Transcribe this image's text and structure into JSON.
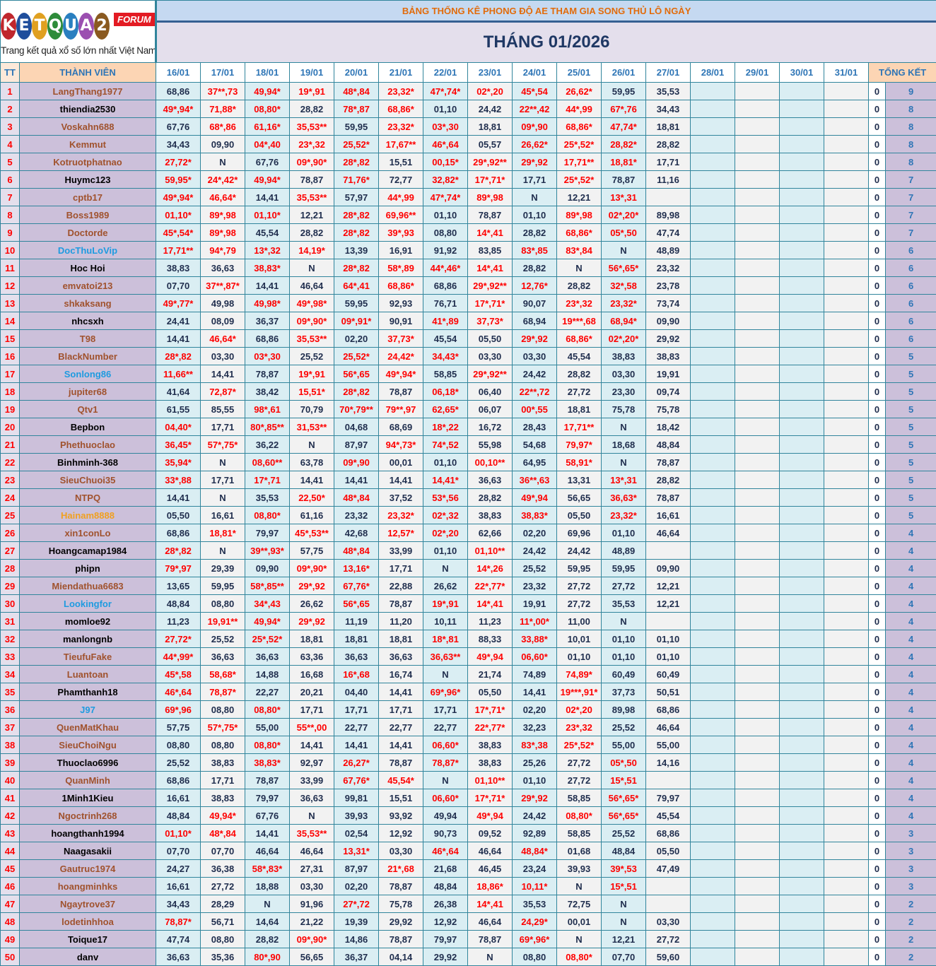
{
  "logo": {
    "letters": [
      "K",
      "E",
      "T",
      "Q",
      "U",
      "A",
      "2"
    ],
    "letter_colors": [
      "#c0272d",
      "#1f4e9c",
      "#e0a020",
      "#2e8b3a",
      "#2a7fc0",
      "#9b4fb0",
      "#8a5a20"
    ],
    "badge": "FORUM",
    "tagline": "Trang kết quả xổ số lớn nhất Việt Nam"
  },
  "title": "BẢNG THỐNG KÊ PHONG ĐỘ AE THAM GIA SONG THỦ LÔ NGÀY",
  "month": "THÁNG 01/2026",
  "headers": {
    "tt": "TT",
    "member": "THÀNH VIÊN",
    "total": "TỔNG KẾT",
    "dates": [
      "16/01",
      "17/01",
      "18/01",
      "19/01",
      "20/01",
      "21/01",
      "22/01",
      "23/01",
      "24/01",
      "25/01",
      "26/01",
      "27/01",
      "28/01",
      "29/01",
      "30/01",
      "31/01"
    ]
  },
  "name_colors": {
    "brown": "#a0522d",
    "black": "#000000",
    "blue": "#1e9be0",
    "orange": "#f0a020"
  },
  "highlight_color": "#ff0000",
  "rows": [
    [
      "1",
      "LangThang1977",
      "brown",
      [
        "68,86",
        "37**,73",
        "49,94*",
        "19*,91",
        "48*,84",
        "23,32*",
        "47*,74*",
        "02*,20",
        "45*,54",
        "26,62*",
        "59,95",
        "35,53"
      ],
      "0",
      "9"
    ],
    [
      "2",
      "thiendia2530",
      "black",
      [
        "49*,94*",
        "71,88*",
        "08,80*",
        "28,82",
        "78*,87",
        "68,86*",
        "01,10",
        "24,42",
        "22**,42",
        "44*,99",
        "67*,76",
        "34,43"
      ],
      "0",
      "8"
    ],
    [
      "3",
      "Voskahn688",
      "brown",
      [
        "67,76",
        "68*,86",
        "61,16*",
        "35,53**",
        "59,95",
        "23,32*",
        "03*,30",
        "18,81",
        "09*,90",
        "68,86*",
        "47,74*",
        "18,81"
      ],
      "0",
      "8"
    ],
    [
      "4",
      "Kemmut",
      "brown",
      [
        "34,43",
        "09,90",
        "04*,40",
        "23*,32",
        "25,52*",
        "17,67**",
        "46*,64",
        "05,57",
        "26,62*",
        "25*,52*",
        "28,82*",
        "28,82"
      ],
      "0",
      "8"
    ],
    [
      "5",
      "Kotruotphatnao",
      "brown",
      [
        "27,72*",
        "N",
        "67,76",
        "09*,90*",
        "28*,82",
        "15,51",
        "00,15*",
        "29*,92**",
        "29*,92",
        "17,71**",
        "18,81*",
        "17,71"
      ],
      "0",
      "8"
    ],
    [
      "6",
      "Huymc123",
      "black",
      [
        "59,95*",
        "24*,42*",
        "49,94*",
        "78,87",
        "71,76*",
        "72,77",
        "32,82*",
        "17*,71*",
        "17,71",
        "25*,52*",
        "78,87",
        "11,16"
      ],
      "0",
      "7"
    ],
    [
      "7",
      "cptb17",
      "brown",
      [
        "49*,94*",
        "46,64*",
        "14,41",
        "35,53**",
        "57,97",
        "44*,99",
        "47*,74*",
        "89*,98",
        "N",
        "12,21",
        "13*,31",
        ""
      ],
      "0",
      "7"
    ],
    [
      "8",
      "Boss1989",
      "brown",
      [
        "01,10*",
        "89*,98",
        "01,10*",
        "12,21",
        "28*,82",
        "69,96**",
        "01,10",
        "78,87",
        "01,10",
        "89*,98",
        "02*,20*",
        "89,98"
      ],
      "0",
      "7"
    ],
    [
      "9",
      "Doctorde",
      "brown",
      [
        "45*,54*",
        "89*,98",
        "45,54",
        "28,82",
        "28*,82",
        "39*,93",
        "08,80",
        "14*,41",
        "28,82",
        "68,86*",
        "05*,50",
        "47,74"
      ],
      "0",
      "7"
    ],
    [
      "10",
      "DocThuLoVip",
      "blue",
      [
        "17,71**",
        "94*,79",
        "13*,32",
        "14,19*",
        "13,39",
        "16,91",
        "91,92",
        "83,85",
        "83*,85",
        "83*,84",
        "N",
        "48,89"
      ],
      "0",
      "6"
    ],
    [
      "11",
      "Hoc Hoi",
      "black",
      [
        "38,83",
        "36,63",
        "38,83*",
        "N",
        "28*,82",
        "58*,89",
        "44*,46*",
        "14*,41",
        "28,82",
        "N",
        "56*,65*",
        "23,32"
      ],
      "0",
      "6"
    ],
    [
      "12",
      "emvatoi213",
      "brown",
      [
        "07,70",
        "37**,87*",
        "14,41",
        "46,64",
        "64*,41",
        "68,86*",
        "68,86",
        "29*,92**",
        "12,76*",
        "28,82",
        "32*,58",
        "23,78"
      ],
      "0",
      "6"
    ],
    [
      "13",
      "shkaksang",
      "brown",
      [
        "49*,77*",
        "49,98",
        "49,98*",
        "49*,98*",
        "59,95",
        "92,93",
        "76,71",
        "17*,71*",
        "90,07",
        "23*,32",
        "23,32*",
        "73,74"
      ],
      "0",
      "6"
    ],
    [
      "14",
      "nhcsxh",
      "black",
      [
        "24,41",
        "08,09",
        "36,37",
        "09*,90*",
        "09*,91*",
        "90,91",
        "41*,89",
        "37,73*",
        "68,94",
        "19***,68",
        "68,94*",
        "09,90"
      ],
      "0",
      "6"
    ],
    [
      "15",
      "T98",
      "brown",
      [
        "14,41",
        "46,64*",
        "68,86",
        "35,53**",
        "02,20",
        "37,73*",
        "45,54",
        "05,50",
        "29*,92",
        "68,86*",
        "02*,20*",
        "29,92"
      ],
      "0",
      "6"
    ],
    [
      "16",
      "BlackNumber",
      "brown",
      [
        "28*,82",
        "03,30",
        "03*,30",
        "25,52",
        "25,52*",
        "24,42*",
        "34,43*",
        "03,30",
        "03,30",
        "45,54",
        "38,83",
        "38,83"
      ],
      "0",
      "5"
    ],
    [
      "17",
      "Sonlong86",
      "blue",
      [
        "11,66**",
        "14,41",
        "78,87",
        "19*,91",
        "56*,65",
        "49*,94*",
        "58,85",
        "29*,92**",
        "24,42",
        "28,82",
        "03,30",
        "19,91"
      ],
      "0",
      "5"
    ],
    [
      "18",
      "jupiter68",
      "brown",
      [
        "41,64",
        "72,87*",
        "38,42",
        "15,51*",
        "28*,82",
        "78,87",
        "06,18*",
        "06,40",
        "22**,72",
        "27,72",
        "23,30",
        "09,74"
      ],
      "0",
      "5"
    ],
    [
      "19",
      "Qtv1",
      "brown",
      [
        "61,55",
        "85,55",
        "98*,61",
        "70,79",
        "70*,79**",
        "79**,97",
        "62,65*",
        "06,07",
        "00*,55",
        "18,81",
        "75,78",
        "75,78"
      ],
      "0",
      "5"
    ],
    [
      "20",
      "Bepbon",
      "black",
      [
        "04,40*",
        "17,71",
        "80*,85**",
        "31,53**",
        "04,68",
        "68,69",
        "18*,22",
        "16,72",
        "28,43",
        "17,71**",
        "N",
        "18,42"
      ],
      "0",
      "5"
    ],
    [
      "21",
      "Phethuoclao",
      "brown",
      [
        "36,45*",
        "57*,75*",
        "36,22",
        "N",
        "87,97",
        "94*,73*",
        "74*,52",
        "55,98",
        "54,68",
        "79,97*",
        "18,68",
        "48,84"
      ],
      "0",
      "5"
    ],
    [
      "22",
      "Binhminh-368",
      "black",
      [
        "35,94*",
        "N",
        "08,60**",
        "63,78",
        "09*,90",
        "00,01",
        "01,10",
        "00,10**",
        "64,95",
        "58,91*",
        "N",
        "78,87"
      ],
      "0",
      "5"
    ],
    [
      "23",
      "SieuChuoi35",
      "brown",
      [
        "33*,88",
        "17,71",
        "17*,71",
        "14,41",
        "14,41",
        "14,41",
        "14,41*",
        "36,63",
        "36**,63",
        "13,31",
        "13*,31",
        "28,82"
      ],
      "0",
      "5"
    ],
    [
      "24",
      "NTPQ",
      "brown",
      [
        "14,41",
        "N",
        "35,53",
        "22,50*",
        "48*,84",
        "37,52",
        "53*,56",
        "28,82",
        "49*,94",
        "56,65",
        "36,63*",
        "78,87"
      ],
      "0",
      "5"
    ],
    [
      "25",
      "Hainam8888",
      "orange",
      [
        "05,50",
        "16,61",
        "08,80*",
        "61,16",
        "23,32",
        "23,32*",
        "02*,32",
        "38,83",
        "38,83*",
        "05,50",
        "23,32*",
        "16,61"
      ],
      "0",
      "5"
    ],
    [
      "26",
      "xin1conLo",
      "brown",
      [
        "68,86",
        "18,81*",
        "79,97",
        "45*,53**",
        "42,68",
        "12,57*",
        "02*,20",
        "62,66",
        "02,20",
        "69,96",
        "01,10",
        "46,64"
      ],
      "0",
      "4"
    ],
    [
      "27",
      "Hoangcamap1984",
      "black",
      [
        "28*,82",
        "N",
        "39**,93*",
        "57,75",
        "48*,84",
        "33,99",
        "01,10",
        "01,10**",
        "24,42",
        "24,42",
        "48,89",
        ""
      ],
      "0",
      "4"
    ],
    [
      "28",
      "phipn",
      "black",
      [
        "79*,97",
        "29,39",
        "09,90",
        "09*,90*",
        "13,16*",
        "17,71",
        "N",
        "14*,26",
        "25,52",
        "59,95",
        "59,95",
        "09,90"
      ],
      "0",
      "4"
    ],
    [
      "29",
      "Miendathua6683",
      "brown",
      [
        "13,65",
        "59,95",
        "58*,85**",
        "29*,92",
        "67,76*",
        "22,88",
        "26,62",
        "22*,77*",
        "23,32",
        "27,72",
        "27,72",
        "12,21"
      ],
      "0",
      "4"
    ],
    [
      "30",
      "Lookingfor",
      "blue",
      [
        "48,84",
        "08,80",
        "34*,43",
        "26,62",
        "56*,65",
        "78,87",
        "19*,91",
        "14*,41",
        "19,91",
        "27,72",
        "35,53",
        "12,21"
      ],
      "0",
      "4"
    ],
    [
      "31",
      "momloe92",
      "black",
      [
        "11,23",
        "19,91**",
        "49,94*",
        "29*,92",
        "11,19",
        "11,20",
        "10,11",
        "11,23",
        "11*,00*",
        "11,00",
        "N",
        ""
      ],
      "0",
      "4"
    ],
    [
      "32",
      "manlongnb",
      "black",
      [
        "27,72*",
        "25,52",
        "25*,52*",
        "18,81",
        "18,81",
        "18,81",
        "18*,81",
        "88,33",
        "33,88*",
        "10,01",
        "01,10",
        "01,10"
      ],
      "0",
      "4"
    ],
    [
      "33",
      "TieufuFake",
      "brown",
      [
        "44*,99*",
        "36,63",
        "36,63",
        "63,36",
        "36,63",
        "36,63",
        "36,63**",
        "49*,94",
        "06,60*",
        "01,10",
        "01,10",
        "01,10"
      ],
      "0",
      "4"
    ],
    [
      "34",
      "Luantoan",
      "brown",
      [
        "45*,58",
        "58,68*",
        "14,88",
        "16,68",
        "16*,68",
        "16,74",
        "N",
        "21,74",
        "74,89",
        "74,89*",
        "60,49",
        "60,49"
      ],
      "0",
      "4"
    ],
    [
      "35",
      "Phamthanh18",
      "black",
      [
        "46*,64",
        "78,87*",
        "22,27",
        "20,21",
        "04,40",
        "14,41",
        "69*,96*",
        "05,50",
        "14,41",
        "19***,91*",
        "37,73",
        "50,51"
      ],
      "0",
      "4"
    ],
    [
      "36",
      "J97",
      "blue",
      [
        "69*,96",
        "08,80",
        "08,80*",
        "17,71",
        "17,71",
        "17,71",
        "17,71",
        "17*,71*",
        "02,20",
        "02*,20",
        "89,98",
        "68,86"
      ],
      "0",
      "4"
    ],
    [
      "37",
      "QuenMatKhau",
      "brown",
      [
        "57,75",
        "57*,75*",
        "55,00",
        "55**,00",
        "22,77",
        "22,77",
        "22,77",
        "22*,77*",
        "32,23",
        "23*,32",
        "25,52",
        "46,64"
      ],
      "0",
      "4"
    ],
    [
      "38",
      "SieuChoiNgu",
      "brown",
      [
        "08,80",
        "08,80",
        "08,80*",
        "14,41",
        "14,41",
        "14,41",
        "06,60*",
        "38,83",
        "83*,38",
        "25*,52*",
        "55,00",
        "55,00"
      ],
      "0",
      "4"
    ],
    [
      "39",
      "Thuoclao6996",
      "black",
      [
        "25,52",
        "38,83",
        "38,83*",
        "92,97",
        "26,27*",
        "78,87",
        "78,87*",
        "38,83",
        "25,26",
        "27,72",
        "05*,50",
        "14,16"
      ],
      "0",
      "4"
    ],
    [
      "40",
      "QuanMinh",
      "brown",
      [
        "68,86",
        "17,71",
        "78,87",
        "33,99",
        "67,76*",
        "45,54*",
        "N",
        "01,10**",
        "01,10",
        "27,72",
        "15*,51",
        ""
      ],
      "0",
      "4"
    ],
    [
      "41",
      "1Minh1Kieu",
      "black",
      [
        "16,61",
        "38,83",
        "79,97",
        "36,63",
        "99,81",
        "15,51",
        "06,60*",
        "17*,71*",
        "29*,92",
        "58,85",
        "56*,65*",
        "79,97"
      ],
      "0",
      "4"
    ],
    [
      "42",
      "Ngoctrinh268",
      "brown",
      [
        "48,84",
        "49,94*",
        "67,76",
        "N",
        "39,93",
        "93,92",
        "49,94",
        "49*,94",
        "24,42",
        "08,80*",
        "56*,65*",
        "45,54"
      ],
      "0",
      "4"
    ],
    [
      "43",
      "hoangthanh1994",
      "black",
      [
        "01,10*",
        "48*,84",
        "14,41",
        "35,53**",
        "02,54",
        "12,92",
        "90,73",
        "09,52",
        "92,89",
        "58,85",
        "25,52",
        "68,86"
      ],
      "0",
      "3"
    ],
    [
      "44",
      "Naagasakii",
      "black",
      [
        "07,70",
        "07,70",
        "46,64",
        "46,64",
        "13,31*",
        "03,30",
        "46*,64",
        "46,64",
        "48,84*",
        "01,68",
        "48,84",
        "05,50"
      ],
      "0",
      "3"
    ],
    [
      "45",
      "Gautruc1974",
      "brown",
      [
        "24,27",
        "36,38",
        "58*,83*",
        "27,31",
        "87,97",
        "21*,68",
        "21,68",
        "46,45",
        "23,24",
        "39,93",
        "39*,53",
        "47,49"
      ],
      "0",
      "3"
    ],
    [
      "46",
      "hoangminhks",
      "brown",
      [
        "16,61",
        "27,72",
        "18,88",
        "03,30",
        "02,20",
        "78,87",
        "48,84",
        "18,86*",
        "10,11*",
        "N",
        "15*,51",
        ""
      ],
      "0",
      "3"
    ],
    [
      "47",
      "Ngaytrove37",
      "brown",
      [
        "34,43",
        "28,29",
        "N",
        "91,96",
        "27*,72",
        "75,78",
        "26,38",
        "14*,41",
        "35,53",
        "72,75",
        "N",
        ""
      ],
      "0",
      "2"
    ],
    [
      "48",
      "lodetinhhoa",
      "brown",
      [
        "78,87*",
        "56,71",
        "14,64",
        "21,22",
        "19,39",
        "29,92",
        "12,92",
        "46,64",
        "24,29*",
        "00,01",
        "N",
        "03,30"
      ],
      "0",
      "2"
    ],
    [
      "49",
      "Toique17",
      "black",
      [
        "47,74",
        "08,80",
        "28,82",
        "09*,90*",
        "14,86",
        "78,87",
        "79,97",
        "78,87",
        "69*,96*",
        "N",
        "12,21",
        "27,72"
      ],
      "0",
      "2"
    ],
    [
      "50",
      "danv",
      "black",
      [
        "36,63",
        "35,36",
        "80*,90",
        "56,65",
        "36,37",
        "04,14",
        "29,92",
        "N",
        "08,80",
        "08,80*",
        "07,70",
        "59,60"
      ],
      "0",
      "2"
    ]
  ]
}
